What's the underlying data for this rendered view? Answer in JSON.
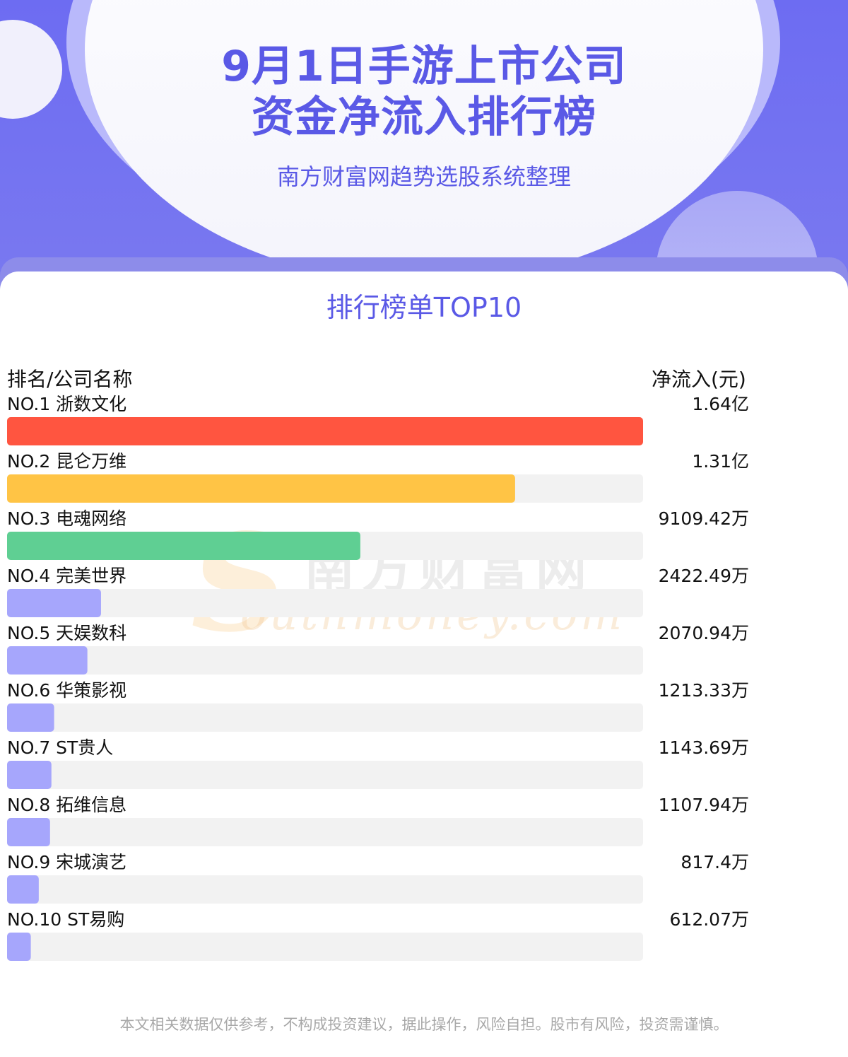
{
  "header": {
    "title_line1": "9月1日手游上市公司",
    "title_line2": "资金净流入排行榜",
    "subtitle": "南方财富网趋势选股系统整理"
  },
  "chart_heading": "排行榜单TOP10",
  "columns": {
    "left": "排名/公司名称",
    "right": "净流入(元)"
  },
  "watermark": {
    "cn": "南方财富网",
    "en": "outhmoney.com",
    "s": "S"
  },
  "colors": {
    "primary": "#5a59e6",
    "rank1": "#ff5540",
    "rank2": "#ffc445",
    "rank3": "#5fcf93",
    "rest": "#a6a6fc",
    "track": "#f2f2f2"
  },
  "chart_data": {
    "type": "bar",
    "orientation": "horizontal",
    "unit": "元",
    "rows": [
      {
        "rank": "NO.1",
        "name": "浙数文化",
        "value": 164000000,
        "label": "1.64亿"
      },
      {
        "rank": "NO.2",
        "name": "昆仑万维",
        "value": 131000000,
        "label": "1.31亿"
      },
      {
        "rank": "NO.3",
        "name": "电魂网络",
        "value": 91094200,
        "label": "9109.42万"
      },
      {
        "rank": "NO.4",
        "name": "完美世界",
        "value": 24224900,
        "label": "2422.49万"
      },
      {
        "rank": "NO.5",
        "name": "天娱数科",
        "value": 20709400,
        "label": "2070.94万"
      },
      {
        "rank": "NO.6",
        "name": "华策影视",
        "value": 12133300,
        "label": "1213.33万"
      },
      {
        "rank": "NO.7",
        "name": "ST贵人",
        "value": 11436900,
        "label": "1143.69万"
      },
      {
        "rank": "NO.8",
        "name": "拓维信息",
        "value": 11079400,
        "label": "1107.94万"
      },
      {
        "rank": "NO.9",
        "name": "宋城演艺",
        "value": 8174000,
        "label": "817.4万"
      },
      {
        "rank": "NO.10",
        "name": "ST易购",
        "value": 6120700,
        "label": "612.07万"
      }
    ]
  },
  "disclaimer": "本文相关数据仅供参考，不构成投资建议，据此操作，风险自担。股市有风险，投资需谨慎。"
}
